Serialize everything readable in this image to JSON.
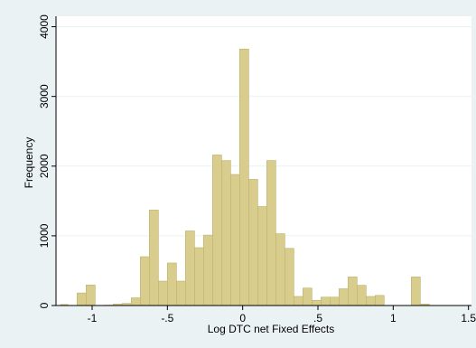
{
  "chart_data": {
    "type": "bar",
    "xlabel": "Log DTC net Fixed Effects",
    "ylabel": "Frequency",
    "xlim": [
      -1.24,
      1.52
    ],
    "ylim": [
      0,
      4150
    ],
    "x_ticks": [
      {
        "value": -1.0,
        "label": "-1"
      },
      {
        "value": -0.5,
        "label": "-.5"
      },
      {
        "value": 0.0,
        "label": "0"
      },
      {
        "value": 0.5,
        "label": ".5"
      },
      {
        "value": 1.0,
        "label": "1"
      },
      {
        "value": 1.5,
        "label": "1.5"
      }
    ],
    "y_ticks": [
      {
        "value": 0,
        "label": "0"
      },
      {
        "value": 1000,
        "label": "1000"
      },
      {
        "value": 2000,
        "label": "2000"
      },
      {
        "value": 3000,
        "label": "3000"
      },
      {
        "value": 4000,
        "label": "4000"
      }
    ],
    "grid": "horizontal",
    "bar_color": "#d8cd8c",
    "bar_edge_color": "#bdb06a",
    "plot_background": "#ffffff",
    "outer_background": "#eaf2f3",
    "bins": [
      {
        "x0": -1.21,
        "x1": -1.16,
        "count": 15
      },
      {
        "x0": -1.16,
        "x1": -1.1,
        "count": 0
      },
      {
        "x0": -1.1,
        "x1": -1.04,
        "count": 180
      },
      {
        "x0": -1.04,
        "x1": -0.98,
        "count": 295
      },
      {
        "x0": -0.98,
        "x1": -0.92,
        "count": 0
      },
      {
        "x0": -0.92,
        "x1": -0.86,
        "count": 5
      },
      {
        "x0": -0.86,
        "x1": -0.8,
        "count": 20
      },
      {
        "x0": -0.8,
        "x1": -0.74,
        "count": 30
      },
      {
        "x0": -0.74,
        "x1": -0.68,
        "count": 110
      },
      {
        "x0": -0.68,
        "x1": -0.62,
        "count": 700
      },
      {
        "x0": -0.62,
        "x1": -0.56,
        "count": 1370
      },
      {
        "x0": -0.56,
        "x1": -0.5,
        "count": 350
      },
      {
        "x0": -0.5,
        "x1": -0.44,
        "count": 610
      },
      {
        "x0": -0.44,
        "x1": -0.38,
        "count": 350
      },
      {
        "x0": -0.38,
        "x1": -0.32,
        "count": 1070
      },
      {
        "x0": -0.32,
        "x1": -0.26,
        "count": 830
      },
      {
        "x0": -0.26,
        "x1": -0.2,
        "count": 1010
      },
      {
        "x0": -0.2,
        "x1": -0.14,
        "count": 2160
      },
      {
        "x0": -0.14,
        "x1": -0.08,
        "count": 2080
      },
      {
        "x0": -0.08,
        "x1": -0.02,
        "count": 1880
      },
      {
        "x0": -0.02,
        "x1": 0.04,
        "count": 3680
      },
      {
        "x0": 0.04,
        "x1": 0.1,
        "count": 1810
      },
      {
        "x0": 0.1,
        "x1": 0.16,
        "count": 1420
      },
      {
        "x0": 0.16,
        "x1": 0.22,
        "count": 2080
      },
      {
        "x0": 0.22,
        "x1": 0.28,
        "count": 1030
      },
      {
        "x0": 0.28,
        "x1": 0.34,
        "count": 820
      },
      {
        "x0": 0.34,
        "x1": 0.4,
        "count": 130
      },
      {
        "x0": 0.4,
        "x1": 0.46,
        "count": 250
      },
      {
        "x0": 0.46,
        "x1": 0.52,
        "count": 75
      },
      {
        "x0": 0.52,
        "x1": 0.58,
        "count": 120
      },
      {
        "x0": 0.58,
        "x1": 0.64,
        "count": 120
      },
      {
        "x0": 0.64,
        "x1": 0.7,
        "count": 240
      },
      {
        "x0": 0.7,
        "x1": 0.76,
        "count": 410
      },
      {
        "x0": 0.76,
        "x1": 0.82,
        "count": 290
      },
      {
        "x0": 0.82,
        "x1": 0.88,
        "count": 130
      },
      {
        "x0": 0.88,
        "x1": 0.94,
        "count": 145
      },
      {
        "x0": 0.94,
        "x1": 1.0,
        "count": 0
      },
      {
        "x0": 1.0,
        "x1": 1.06,
        "count": 0
      },
      {
        "x0": 1.06,
        "x1": 1.12,
        "count": 0
      },
      {
        "x0": 1.12,
        "x1": 1.18,
        "count": 410
      },
      {
        "x0": 1.18,
        "x1": 1.24,
        "count": 20
      }
    ]
  }
}
